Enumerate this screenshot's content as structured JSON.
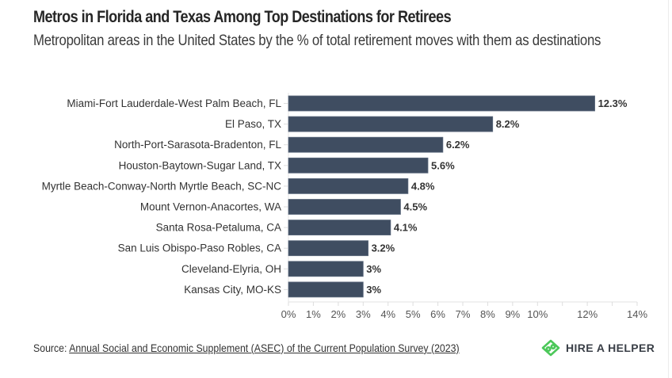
{
  "header": {
    "title": "Metros in Florida and Texas Among Top Destinations for Retirees",
    "subtitle": "Metropolitan areas in the United States by the % of total retirement moves with them as destinations"
  },
  "chart_data": {
    "type": "bar",
    "orientation": "horizontal",
    "title": "Metros in Florida and Texas Among Top Destinations for Retirees",
    "subtitle": "Metropolitan areas in the United States by the % of total retirement moves with them as destinations",
    "xlabel": "",
    "ylabel": "",
    "categories": [
      "Miami-Fort Lauderdale-West Palm Beach, FL",
      "El Paso, TX",
      "North-Port-Sarasota-Bradenton, FL",
      "Houston-Baytown-Sugar Land, TX",
      "Myrtle Beach-Conway-North Myrtle Beach, SC-NC",
      "Mount Vernon-Anacortes, WA",
      "Santa Rosa-Petaluma, CA",
      "San Luis Obispo-Paso Robles, CA",
      "Cleveland-Elyria, OH",
      "Kansas City, MO-KS"
    ],
    "values": [
      12.3,
      8.2,
      6.2,
      5.6,
      4.8,
      4.5,
      4.1,
      3.2,
      3,
      3
    ],
    "value_labels": [
      "12.3%",
      "8.2%",
      "6.2%",
      "5.6%",
      "4.8%",
      "4.5%",
      "4.1%",
      "3.2%",
      "3%",
      "3%"
    ],
    "xlim": [
      0,
      14
    ],
    "x_ticks": [
      0,
      1,
      2,
      3,
      4,
      5,
      6,
      7,
      8,
      9,
      10,
      11,
      12,
      13,
      14
    ],
    "x_tick_labels": [
      "0%",
      "1%",
      "2%",
      "3%",
      "4%",
      "5%",
      "6%",
      "7%",
      "8%",
      "9%",
      "10%",
      "",
      "12%",
      "",
      "14%"
    ],
    "grid": false,
    "legend": "none",
    "bar_color": "#3f4d61"
  },
  "footer": {
    "source_prefix": "Source:",
    "source_link": "Annual Social and Economic Supplement (ASEC) of the Current Population Survey (2023)",
    "brand_name": "HIRE A HELPER",
    "brand_color": "#4cc85a"
  }
}
